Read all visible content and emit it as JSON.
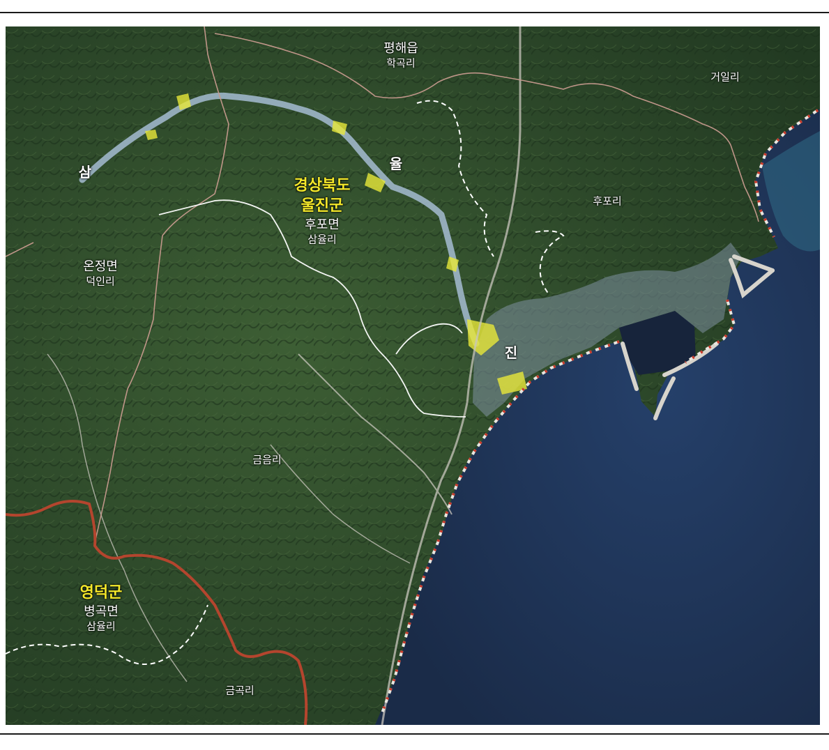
{
  "map": {
    "labels": {
      "pyeonghae_eup": "평해읍",
      "hakgok_ri": "학곡리",
      "geoil_ri": "거일리",
      "sam": "삼",
      "yul": "율",
      "jin": "진",
      "gyeongsangbuk_do": "경상북도",
      "uljin_gun": "울진군",
      "hupo_myeon": "후포면",
      "samyul_ri_north": "삼율리",
      "hupo_ri": "후포리",
      "onjeong_myeon": "온정면",
      "deogin_ri": "덕인리",
      "geumeum_ri": "금음리",
      "yeongdeok_gun": "영덕군",
      "byeonggok_myeon": "병곡면",
      "samyul_ri_south": "삼율리",
      "geumgok_ri": "금곡리"
    },
    "colors": {
      "sea": "#1e3354",
      "forest": "#2d4a2a",
      "district_boundary": "#b4452e",
      "admin_boundary": "#c79a8e",
      "village_boundary": "#ffffff",
      "highlight": "#e9e83a",
      "river": "#9fb6c9"
    }
  }
}
